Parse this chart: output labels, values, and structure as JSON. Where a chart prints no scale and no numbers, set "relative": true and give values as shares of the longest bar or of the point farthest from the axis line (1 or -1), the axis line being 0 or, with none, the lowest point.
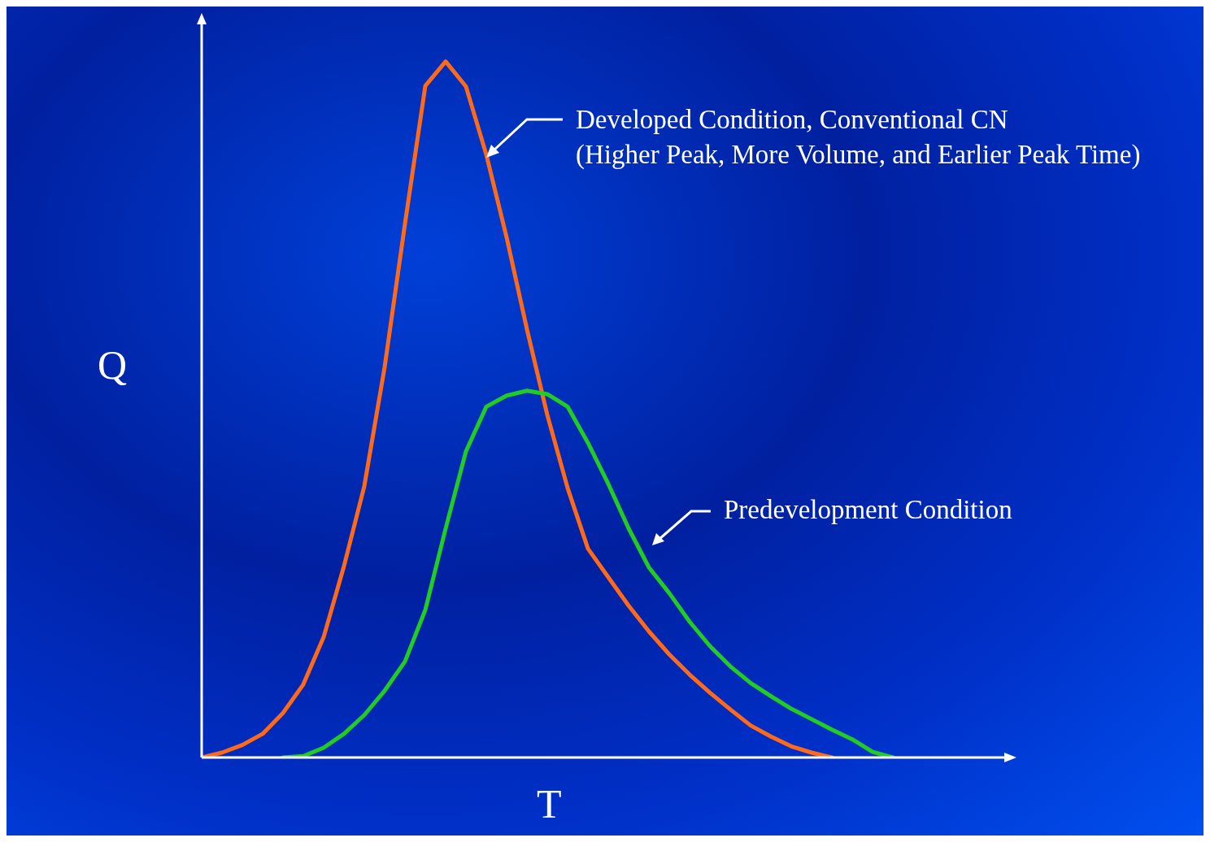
{
  "chart_data": {
    "type": "line",
    "relative": true,
    "xlabel": "T",
    "ylabel": "Q",
    "marker": "none",
    "line_style": "solid",
    "categories": [
      null,
      null,
      null,
      null,
      null,
      null,
      null,
      null,
      null,
      null,
      null,
      null,
      null,
      null,
      null,
      null,
      null,
      null,
      null,
      null,
      null,
      null,
      null,
      null,
      null,
      null,
      null,
      null,
      null,
      null,
      null,
      null,
      null,
      null,
      null
    ],
    "series": [
      {
        "color": "#ff6a1a",
        "values": [
          0,
          0.007,
          0.018,
          0.034,
          0.064,
          0.105,
          0.173,
          0.275,
          0.39,
          0.561,
          0.767,
          0.965,
          1,
          0.964,
          0.866,
          0.747,
          0.615,
          0.492,
          0.387,
          0.3,
          0.259,
          0.218,
          0.181,
          0.148,
          0.119,
          0.093,
          0.069,
          0.046,
          0.03,
          0.016,
          0.007,
          0,
          null,
          null,
          null
        ]
      },
      {
        "color": "#22cc22",
        "values": [
          null,
          null,
          null,
          null,
          0,
          0.002,
          0.014,
          0.034,
          0.061,
          0.096,
          0.138,
          0.212,
          0.329,
          0.44,
          0.504,
          0.52,
          0.527,
          0.522,
          0.504,
          0.452,
          0.393,
          0.329,
          0.273,
          0.236,
          0.195,
          0.16,
          0.131,
          0.107,
          0.088,
          0.07,
          0.055,
          0.04,
          0.026,
          0.008,
          0
        ]
      }
    ],
    "annotations": [
      "Developed Condition, Conventional CN\n(Higher Peak, More Volume, and Earlier Peak Time)",
      "Predevelopment Condition"
    ]
  }
}
